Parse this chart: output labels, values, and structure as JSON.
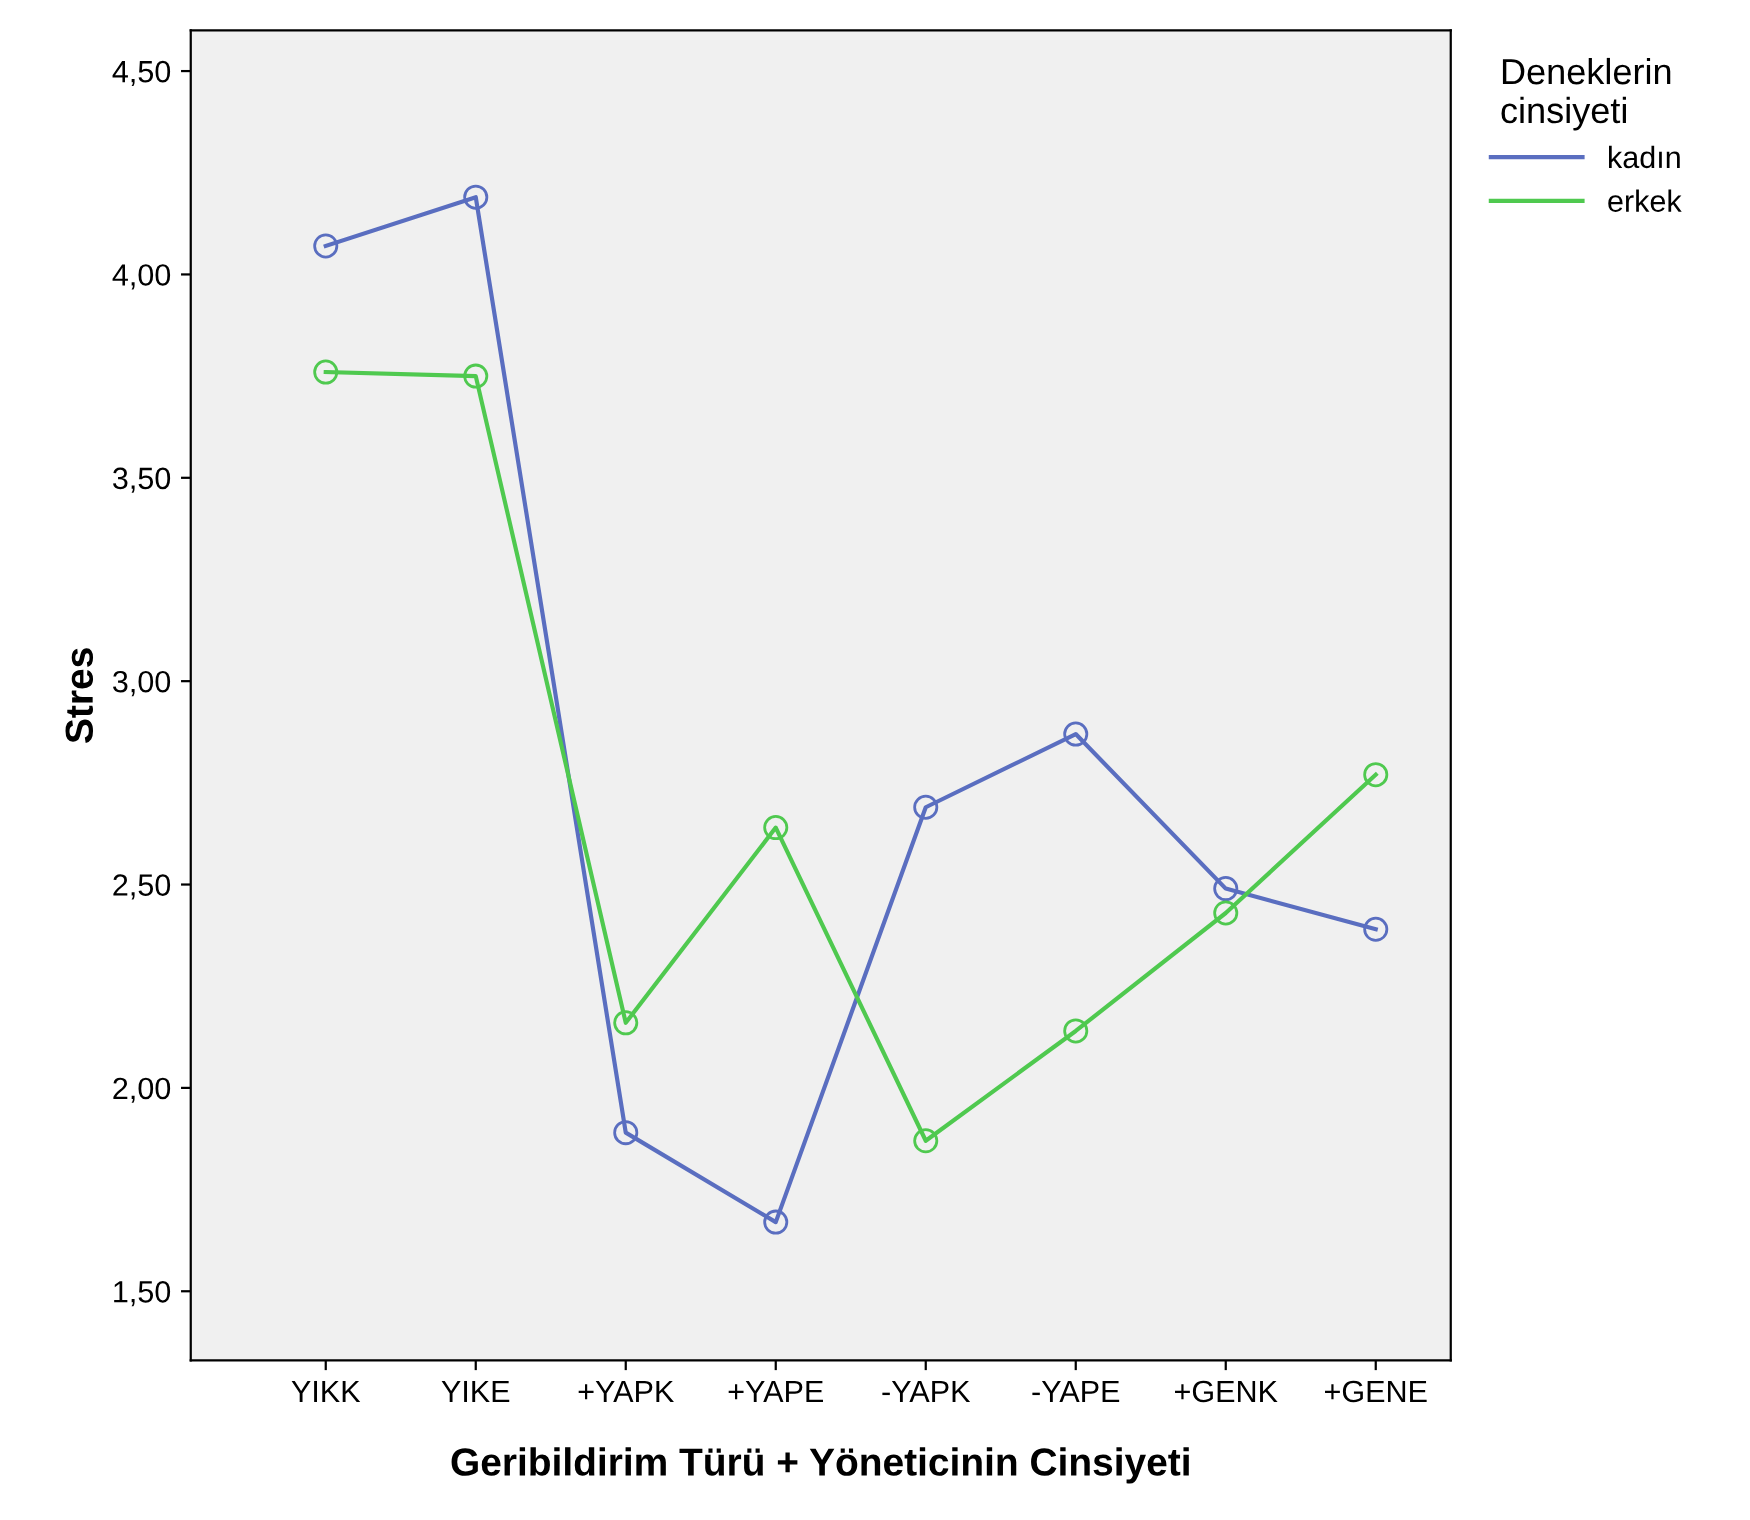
{
  "chart_data": {
    "type": "line",
    "xlabel": "Geribildirim Türü + Yöneticinin Cinsiyeti",
    "ylabel": "Stres",
    "legend_title": "Deneklerin\ncinsiyeti",
    "categories": [
      "YIKK",
      "YIKE",
      "+YAPK",
      "+YAPE",
      "-YAPK",
      "-YAPE",
      "+GENK",
      "+GENE"
    ],
    "series": [
      {
        "name": "kadın",
        "color": "#5a6ec0",
        "values": [
          4.07,
          4.19,
          1.89,
          1.67,
          2.69,
          2.87,
          2.49,
          2.39
        ]
      },
      {
        "name": "erkek",
        "color": "#4fc94f",
        "values": [
          3.76,
          3.75,
          2.16,
          2.64,
          1.87,
          2.14,
          2.43,
          2.77
        ]
      }
    ],
    "ylim": [
      1.33,
      4.6
    ],
    "yticks": [
      {
        "value": 1.5,
        "label": "1,50"
      },
      {
        "value": 2.0,
        "label": "2,00"
      },
      {
        "value": 2.5,
        "label": "2,50"
      },
      {
        "value": 3.0,
        "label": "3,00"
      },
      {
        "value": 3.5,
        "label": "3,50"
      },
      {
        "value": 4.0,
        "label": "4,00"
      },
      {
        "value": 4.5,
        "label": "4,50"
      }
    ],
    "marker": "circle",
    "line_style": "solid",
    "grid": false,
    "legend": "top right"
  }
}
